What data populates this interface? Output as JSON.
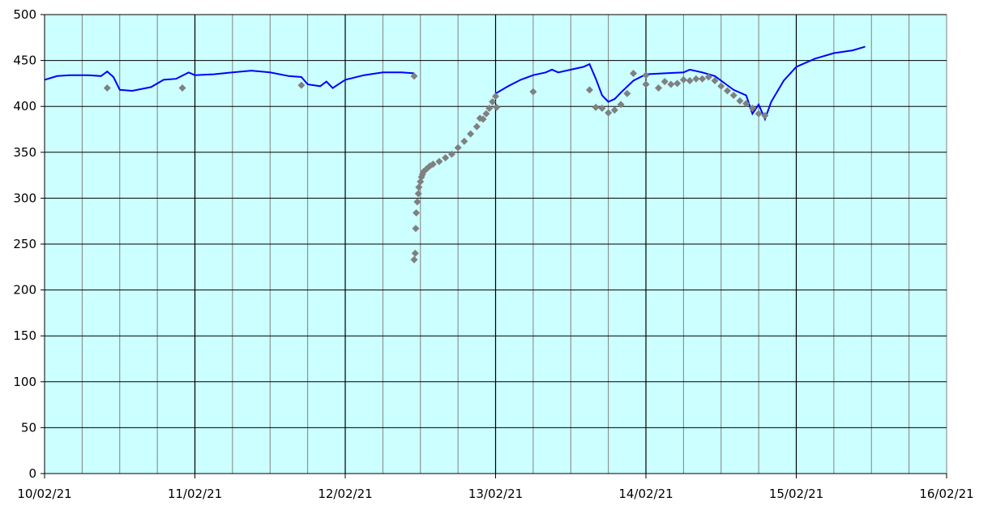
{
  "chart_data": {
    "type": "line",
    "title": "",
    "xlabel": "",
    "ylabel": "",
    "x_range": [
      "10/02/21 00:00",
      "16/02/21 00:00"
    ],
    "ylim": [
      0,
      500
    ],
    "y_ticks": [
      0,
      50,
      100,
      150,
      200,
      250,
      300,
      350,
      400,
      450,
      500
    ],
    "x_tick_labels": [
      "10/02/21",
      "11/02/21",
      "12/02/21",
      "13/02/21",
      "14/02/21",
      "15/02/21",
      "16/02/21"
    ],
    "grid": {
      "major_every_days": 1,
      "minor_every_hours": 6
    },
    "legend": "none",
    "colors": {
      "plot_background": "#ccffff",
      "line_series": "#0000ff",
      "point_series": "#808080",
      "major_grid": "#000000",
      "minor_grid": "#808080"
    },
    "series": [
      {
        "kind": "line",
        "color": "#0000ff",
        "points": [
          [
            "10/02/21 00:00",
            429
          ],
          [
            "10/02/21 02:00",
            433
          ],
          [
            "10/02/21 04:00",
            434
          ],
          [
            "10/02/21 07:00",
            434
          ],
          [
            "10/02/21 09:00",
            433
          ],
          [
            "10/02/21 10:00",
            438
          ],
          [
            "10/02/21 11:00",
            432
          ],
          [
            "10/02/21 12:00",
            418
          ],
          [
            "10/02/21 14:00",
            417
          ],
          [
            "10/02/21 17:00",
            421
          ],
          [
            "10/02/21 19:00",
            429
          ],
          [
            "10/02/21 21:00",
            430
          ],
          [
            "10/02/21 23:00",
            437
          ],
          [
            "11/02/21 00:00",
            434
          ],
          [
            "11/02/21 03:00",
            435
          ],
          [
            "11/02/21 06:00",
            437
          ],
          [
            "11/02/21 09:00",
            439
          ],
          [
            "11/02/21 12:00",
            437
          ],
          [
            "11/02/21 15:00",
            433
          ],
          [
            "11/02/21 17:00",
            432
          ],
          [
            "11/02/21 18:00",
            424
          ],
          [
            "11/02/21 20:00",
            422
          ],
          [
            "11/02/21 21:00",
            427
          ],
          [
            "11/02/21 22:00",
            420
          ],
          [
            "12/02/21 00:00",
            429
          ],
          [
            "12/02/21 03:00",
            434
          ],
          [
            "12/02/21 06:00",
            437
          ],
          [
            "12/02/21 09:00",
            437
          ],
          [
            "12/02/21 11:00",
            436
          ]
        ]
      },
      {
        "kind": "line",
        "color": "#0000ff",
        "points": [
          [
            "13/02/21 00:00",
            414
          ],
          [
            "13/02/21 02:00",
            422
          ],
          [
            "13/02/21 04:00",
            429
          ],
          [
            "13/02/21 06:00",
            434
          ],
          [
            "13/02/21 08:00",
            437
          ],
          [
            "13/02/21 09:00",
            440
          ],
          [
            "13/02/21 10:00",
            437
          ],
          [
            "13/02/21 12:00",
            440
          ],
          [
            "13/02/21 14:00",
            443
          ],
          [
            "13/02/21 15:00",
            446
          ],
          [
            "13/02/21 16:00",
            430
          ],
          [
            "13/02/21 17:00",
            412
          ],
          [
            "13/02/21 18:00",
            405
          ],
          [
            "13/02/21 19:00",
            408
          ],
          [
            "13/02/21 20:00",
            415
          ],
          [
            "13/02/21 22:00",
            428
          ],
          [
            "14/02/21 00:00",
            435
          ],
          [
            "14/02/21 03:00",
            436
          ],
          [
            "14/02/21 06:00",
            437
          ],
          [
            "14/02/21 07:00",
            440
          ],
          [
            "14/02/21 09:00",
            437
          ],
          [
            "14/02/21 11:00",
            433
          ],
          [
            "14/02/21 12:00",
            428
          ],
          [
            "14/02/21 14:00",
            418
          ],
          [
            "14/02/21 16:00",
            412
          ],
          [
            "14/02/21 17:00",
            392
          ],
          [
            "14/02/21 18:00",
            402
          ],
          [
            "14/02/21 19:00",
            386
          ],
          [
            "14/02/21 20:00",
            405
          ],
          [
            "14/02/21 22:00",
            428
          ],
          [
            "15/02/21 00:00",
            443
          ],
          [
            "15/02/21 03:00",
            452
          ],
          [
            "15/02/21 06:00",
            458
          ],
          [
            "15/02/21 09:00",
            461
          ],
          [
            "15/02/21 11:00",
            465
          ]
        ]
      },
      {
        "kind": "scatter",
        "color": "#808080",
        "points": [
          [
            "10/02/21 10:00",
            420
          ],
          [
            "10/02/21 22:00",
            420
          ],
          [
            "11/02/21 17:00",
            423
          ],
          [
            "12/02/21 11:00",
            433
          ],
          [
            "12/02/21 11:00",
            233
          ],
          [
            "12/02/21 11:10",
            240
          ],
          [
            "12/02/21 11:15",
            267
          ],
          [
            "12/02/21 11:20",
            284
          ],
          [
            "12/02/21 11:30",
            296
          ],
          [
            "12/02/21 11:40",
            305
          ],
          [
            "12/02/21 11:45",
            312
          ],
          [
            "12/02/21 12:00",
            318
          ],
          [
            "12/02/21 12:10",
            323
          ],
          [
            "12/02/21 12:20",
            326
          ],
          [
            "12/02/21 12:30",
            329
          ],
          [
            "12/02/21 13:00",
            332
          ],
          [
            "12/02/21 13:30",
            335
          ],
          [
            "12/02/21 14:00",
            337
          ],
          [
            "12/02/21 15:00",
            340
          ],
          [
            "12/02/21 16:00",
            344
          ],
          [
            "12/02/21 17:00",
            348
          ],
          [
            "12/02/21 18:00",
            355
          ],
          [
            "12/02/21 19:00",
            362
          ],
          [
            "12/02/21 20:00",
            370
          ],
          [
            "12/02/21 21:00",
            378
          ],
          [
            "12/02/21 21:30",
            387
          ],
          [
            "12/02/21 22:00",
            386
          ],
          [
            "12/02/21 22:30",
            392
          ],
          [
            "12/02/21 23:00",
            398
          ],
          [
            "12/02/21 23:30",
            405
          ],
          [
            "13/02/21 00:00",
            411
          ],
          [
            "13/02/21 00:10",
            399
          ],
          [
            "13/02/21 06:00",
            416
          ],
          [
            "13/02/21 15:00",
            418
          ],
          [
            "13/02/21 16:00",
            399
          ],
          [
            "13/02/21 17:00",
            398
          ],
          [
            "13/02/21 18:00",
            393
          ],
          [
            "13/02/21 19:00",
            396
          ],
          [
            "13/02/21 20:00",
            402
          ],
          [
            "13/02/21 21:00",
            414
          ],
          [
            "13/02/21 22:00",
            436
          ],
          [
            "14/02/21 00:00",
            434
          ],
          [
            "14/02/21 00:00",
            424
          ],
          [
            "14/02/21 02:00",
            420
          ],
          [
            "14/02/21 03:00",
            427
          ],
          [
            "14/02/21 04:00",
            424
          ],
          [
            "14/02/21 05:00",
            425
          ],
          [
            "14/02/21 06:00",
            429
          ],
          [
            "14/02/21 07:00",
            428
          ],
          [
            "14/02/21 08:00",
            430
          ],
          [
            "14/02/21 09:00",
            430
          ],
          [
            "14/02/21 10:00",
            432
          ],
          [
            "14/02/21 11:00",
            428
          ],
          [
            "14/02/21 12:00",
            422
          ],
          [
            "14/02/21 13:00",
            417
          ],
          [
            "14/02/21 14:00",
            412
          ],
          [
            "14/02/21 15:00",
            406
          ],
          [
            "14/02/21 16:00",
            403
          ],
          [
            "14/02/21 17:00",
            398
          ],
          [
            "14/02/21 18:00",
            392
          ],
          [
            "14/02/21 19:00",
            390
          ]
        ]
      }
    ]
  }
}
